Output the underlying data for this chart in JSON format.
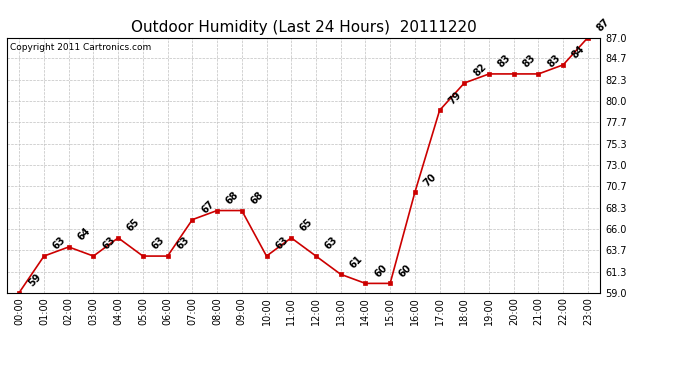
{
  "title": "Outdoor Humidity (Last 24 Hours)  20111220",
  "copyright": "Copyright 2011 Cartronics.com",
  "x_labels": [
    "00:00",
    "01:00",
    "02:00",
    "03:00",
    "04:00",
    "05:00",
    "06:00",
    "07:00",
    "08:00",
    "09:00",
    "10:00",
    "11:00",
    "12:00",
    "13:00",
    "14:00",
    "15:00",
    "16:00",
    "17:00",
    "18:00",
    "19:00",
    "20:00",
    "21:00",
    "22:00",
    "23:00"
  ],
  "y_values": [
    59,
    63,
    64,
    63,
    65,
    63,
    63,
    67,
    68,
    68,
    63,
    65,
    63,
    61,
    60,
    60,
    70,
    79,
    82,
    83,
    83,
    83,
    84,
    87
  ],
  "y_labels": [
    59.0,
    61.3,
    63.7,
    66.0,
    68.3,
    70.7,
    73.0,
    75.3,
    77.7,
    80.0,
    82.3,
    84.7,
    87.0
  ],
  "ylim": [
    59.0,
    87.0
  ],
  "line_color": "#cc0000",
  "marker_color": "#cc0000",
  "bg_color": "#ffffff",
  "grid_color": "#c0c0c0",
  "title_fontsize": 11,
  "copyright_fontsize": 6.5,
  "label_fontsize": 7,
  "annot_fontsize": 7
}
